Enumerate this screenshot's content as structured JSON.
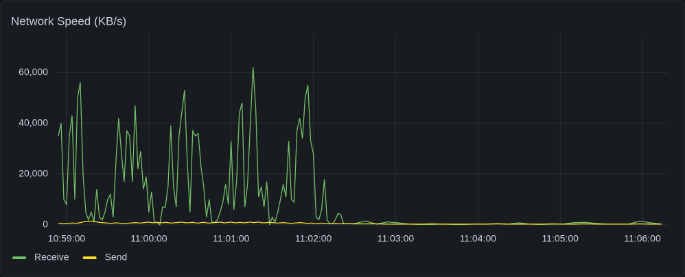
{
  "chart_data": {
    "type": "line",
    "title": "Network Speed (KB/s)",
    "x": [
      "10:58:54",
      "10:58:56",
      "10:58:58",
      "10:59:00",
      "10:59:02",
      "10:59:04",
      "10:59:06",
      "10:59:08",
      "10:59:10",
      "10:59:12",
      "10:59:14",
      "10:59:16",
      "10:59:18",
      "10:59:20",
      "10:59:22",
      "10:59:24",
      "10:59:26",
      "10:59:28",
      "10:59:30",
      "10:59:32",
      "10:59:34",
      "10:59:36",
      "10:59:38",
      "10:59:40",
      "10:59:42",
      "10:59:44",
      "10:59:46",
      "10:59:48",
      "10:59:50",
      "10:59:52",
      "10:59:54",
      "10:59:56",
      "10:59:58",
      "11:00:00",
      "11:00:02",
      "11:00:04",
      "11:00:06",
      "11:00:08",
      "11:00:10",
      "11:00:12",
      "11:00:14",
      "11:00:16",
      "11:00:18",
      "11:00:20",
      "11:00:22",
      "11:00:24",
      "11:00:26",
      "11:00:28",
      "11:00:30",
      "11:00:32",
      "11:00:34",
      "11:00:36",
      "11:00:38",
      "11:00:40",
      "11:00:42",
      "11:00:44",
      "11:00:46",
      "11:00:48",
      "11:00:50",
      "11:00:52",
      "11:00:54",
      "11:00:56",
      "11:00:58",
      "11:01:00",
      "11:01:02",
      "11:01:04",
      "11:01:06",
      "11:01:08",
      "11:01:10",
      "11:01:12",
      "11:01:14",
      "11:01:16",
      "11:01:18",
      "11:01:20",
      "11:01:22",
      "11:01:24",
      "11:01:26",
      "11:01:28",
      "11:01:30",
      "11:01:32",
      "11:01:34",
      "11:01:36",
      "11:01:38",
      "11:01:40",
      "11:01:42",
      "11:01:44",
      "11:01:46",
      "11:01:48",
      "11:01:50",
      "11:01:52",
      "11:01:54",
      "11:01:56",
      "11:01:58",
      "11:02:00",
      "11:02:02",
      "11:02:04",
      "11:02:06",
      "11:02:08",
      "11:02:10",
      "11:02:12",
      "11:02:14",
      "11:02:16",
      "11:02:18",
      "11:02:20",
      "11:02:22",
      "11:02:30",
      "11:02:38",
      "11:02:46",
      "11:02:54",
      "11:03:02",
      "11:03:10",
      "11:03:18",
      "11:03:26",
      "11:03:34",
      "11:03:42",
      "11:03:50",
      "11:03:58",
      "11:04:06",
      "11:04:14",
      "11:04:22",
      "11:04:30",
      "11:04:38",
      "11:04:46",
      "11:04:54",
      "11:05:02",
      "11:05:10",
      "11:05:18",
      "11:05:26",
      "11:05:34",
      "11:05:42",
      "11:05:50",
      "11:05:58",
      "11:06:06",
      "11:06:14"
    ],
    "series": [
      {
        "name": "Receive",
        "color": "#73bf69",
        "values": [
          35000,
          40000,
          10000,
          8000,
          35000,
          43000,
          10000,
          50000,
          56000,
          20000,
          5000,
          2000,
          5000,
          1000,
          14000,
          3000,
          2000,
          5000,
          10000,
          12000,
          3000,
          25000,
          42000,
          28000,
          17000,
          37000,
          35000,
          17000,
          47000,
          22000,
          29000,
          14000,
          19000,
          5000,
          13000,
          1000,
          1000,
          0,
          7000,
          7000,
          15000,
          39000,
          15000,
          7000,
          35000,
          44000,
          53000,
          25000,
          5000,
          37000,
          35000,
          36000,
          23000,
          15000,
          3000,
          10000,
          1000,
          1000,
          2000,
          5000,
          9000,
          16000,
          8000,
          33000,
          6000,
          17000,
          44000,
          48000,
          7000,
          16000,
          40000,
          62000,
          45000,
          11000,
          15000,
          7000,
          17000,
          0,
          3000,
          1000,
          5000,
          10000,
          16000,
          11000,
          33000,
          10000,
          9000,
          37000,
          42000,
          34000,
          50000,
          55000,
          33000,
          28000,
          3000,
          2000,
          6000,
          18000,
          2000,
          500,
          500,
          2000,
          4500,
          4000,
          500,
          500,
          1500,
          300,
          1200,
          800,
          300,
          200,
          200,
          300,
          200,
          200,
          300,
          300,
          500,
          300,
          800,
          300,
          200,
          300,
          300,
          900,
          1000,
          600,
          300,
          300,
          300,
          1500,
          800,
          300
        ]
      },
      {
        "name": "Send",
        "color": "#fade2a",
        "values": [
          500,
          700,
          400,
          600,
          500,
          800,
          600,
          700,
          900,
          1200,
          1300,
          1400,
          1500,
          1300,
          1200,
          1000,
          900,
          800,
          700,
          600,
          700,
          800,
          700,
          600,
          500,
          600,
          700,
          800,
          900,
          800,
          700,
          900,
          1000,
          1100,
          900,
          800,
          1000,
          900,
          800,
          1000,
          900,
          700,
          800,
          900,
          1000,
          1100,
          900,
          800,
          900,
          1000,
          800,
          700,
          900,
          1000,
          800,
          700,
          800,
          900,
          1000,
          1100,
          900,
          800,
          1000,
          1100,
          900,
          800,
          1000,
          900,
          800,
          1000,
          1100,
          900,
          1000,
          1100,
          900,
          800,
          900,
          1000,
          900,
          800,
          700,
          800,
          900,
          800,
          700,
          600,
          700,
          800,
          900,
          800,
          700,
          600,
          700,
          600,
          500,
          600,
          700,
          600,
          500,
          400,
          500,
          600,
          500,
          400,
          500,
          400,
          400,
          400,
          300,
          300,
          300,
          300,
          400,
          300,
          300,
          300,
          300,
          300,
          400,
          300,
          300,
          300,
          300,
          400,
          300,
          300,
          400,
          300,
          300,
          300,
          300,
          400,
          300,
          300
        ]
      }
    ],
    "xlim": [
      "10:58:53",
      "11:06:18"
    ],
    "xticks": [
      "10:59:00",
      "11:00:00",
      "11:01:00",
      "11:02:00",
      "11:03:00",
      "11:04:00",
      "11:05:00",
      "11:06:00"
    ],
    "ylim": [
      0,
      75000
    ],
    "yticks": [
      0,
      {
        "value": 20000,
        "label": "20,000"
      },
      {
        "value": 40000,
        "label": "40,000"
      },
      {
        "value": 60000,
        "label": "60,000"
      }
    ],
    "grid": true,
    "legend": "bottom-left"
  }
}
